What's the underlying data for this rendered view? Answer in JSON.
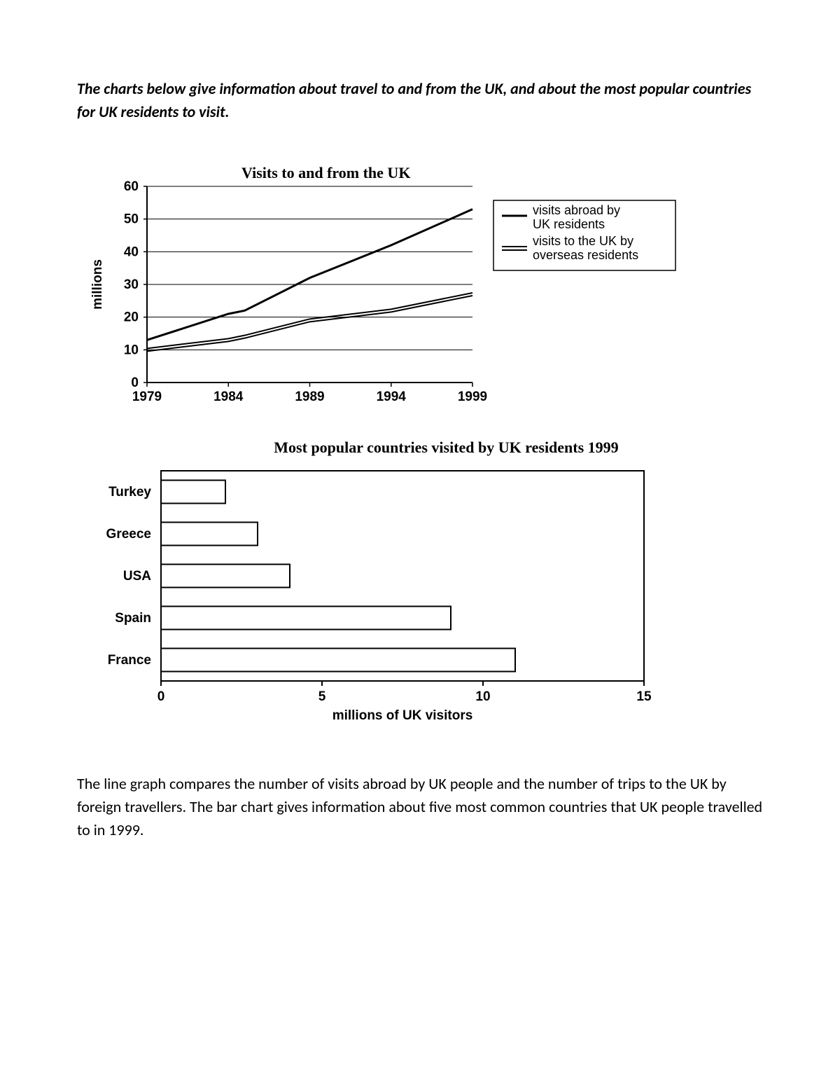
{
  "prompt_text": "The charts below give information about travel to and from the UK, and about the most popular countries for UK residents to visit.",
  "line_chart": {
    "type": "line",
    "title": "Visits to and from the UK",
    "y_label": "millions",
    "x_ticks": [
      "1979",
      "1984",
      "1989",
      "1994",
      "1999"
    ],
    "y_ticks": [
      0,
      10,
      20,
      30,
      40,
      50,
      60
    ],
    "ylim": [
      0,
      60
    ],
    "xlim": [
      1979,
      1999
    ],
    "grid_color": "#000000",
    "background": "#ffffff",
    "line_color": "#000000",
    "line_width_main": 3,
    "line_width_double": 2,
    "series_abroad": {
      "label": "visits abroad by UK residents",
      "style": "single",
      "points": [
        {
          "x": 1979,
          "y": 13
        },
        {
          "x": 1984,
          "y": 21
        },
        {
          "x": 1985,
          "y": 22
        },
        {
          "x": 1989,
          "y": 32
        },
        {
          "x": 1994,
          "y": 42
        },
        {
          "x": 1999,
          "y": 53
        }
      ]
    },
    "series_touk": {
      "label": "visits to the UK by overseas residents",
      "style": "double",
      "points": [
        {
          "x": 1979,
          "y": 10
        },
        {
          "x": 1984,
          "y": 13
        },
        {
          "x": 1985,
          "y": 14
        },
        {
          "x": 1989,
          "y": 19
        },
        {
          "x": 1994,
          "y": 22
        },
        {
          "x": 1999,
          "y": 27
        }
      ]
    }
  },
  "bar_chart": {
    "type": "horizontal_bar",
    "title": "Most popular countries visited by UK residents 1999",
    "x_label": "millions of UK visitors",
    "x_ticks": [
      0,
      5,
      10,
      15
    ],
    "xlim": [
      0,
      15
    ],
    "bar_fill": "#ffffff",
    "bar_stroke": "#000000",
    "bar_stroke_width": 2,
    "categories": [
      {
        "label": "Turkey",
        "value": 2.0
      },
      {
        "label": "Greece",
        "value": 3.0
      },
      {
        "label": "USA",
        "value": 4.0
      },
      {
        "label": "Spain",
        "value": 9.0
      },
      {
        "label": "France",
        "value": 11.0
      }
    ]
  },
  "body_paragraph": "The line graph compares the number of visits abroad by UK people and the number of trips to the UK by foreign travellers. The bar chart gives information about five most common countries that UK people travelled to in 1999."
}
